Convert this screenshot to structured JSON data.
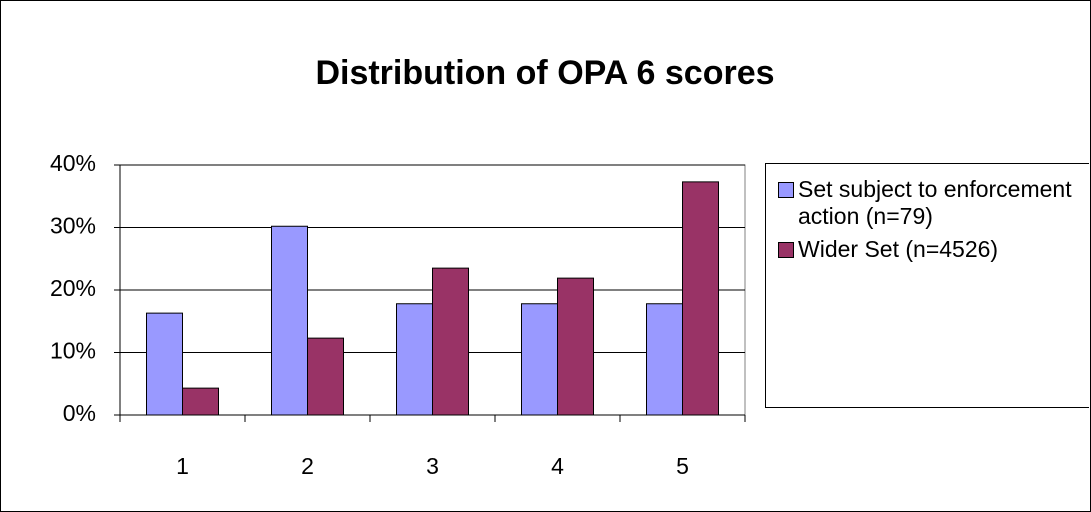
{
  "chart_data": {
    "type": "bar",
    "title": "Distribution of OPA 6 scores",
    "categories": [
      "1",
      "2",
      "3",
      "4",
      "5"
    ],
    "series": [
      {
        "name": "Set subject to enforcement action (n=79)",
        "color": "#9999ff",
        "values": [
          16.3,
          30.2,
          17.8,
          17.8,
          17.8
        ]
      },
      {
        "name": "Wider Set (n=4526)",
        "color": "#993366",
        "values": [
          4.3,
          12.3,
          23.5,
          21.9,
          37.3
        ]
      }
    ],
    "ylim": [
      0,
      40
    ],
    "yticks": [
      {
        "value": 0,
        "label": "0%"
      },
      {
        "value": 10,
        "label": "10%"
      },
      {
        "value": 20,
        "label": "20%"
      },
      {
        "value": 30,
        "label": "30%"
      },
      {
        "value": 40,
        "label": "40%"
      }
    ],
    "grid": true
  }
}
